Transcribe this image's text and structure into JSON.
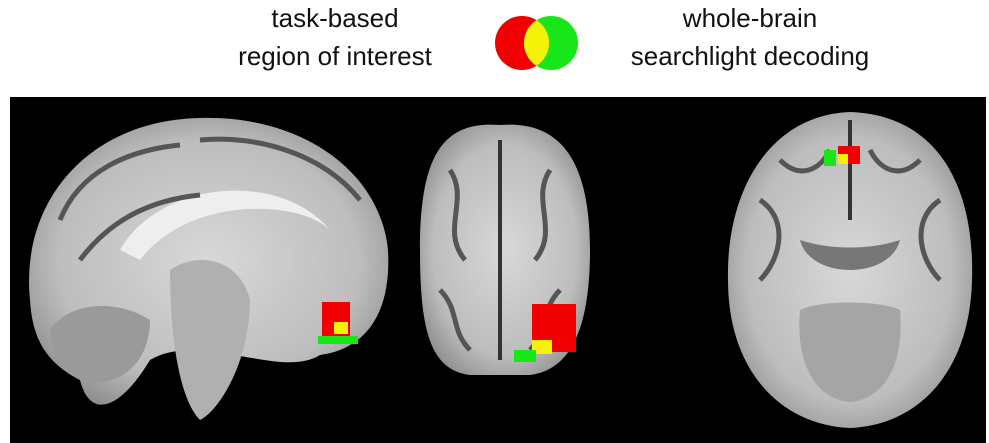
{
  "legend": {
    "left": {
      "lines": [
        "task-based",
        "region of interest"
      ]
    },
    "right": {
      "lines": [
        "whole-brain",
        "searchlight decoding"
      ]
    }
  }
}
